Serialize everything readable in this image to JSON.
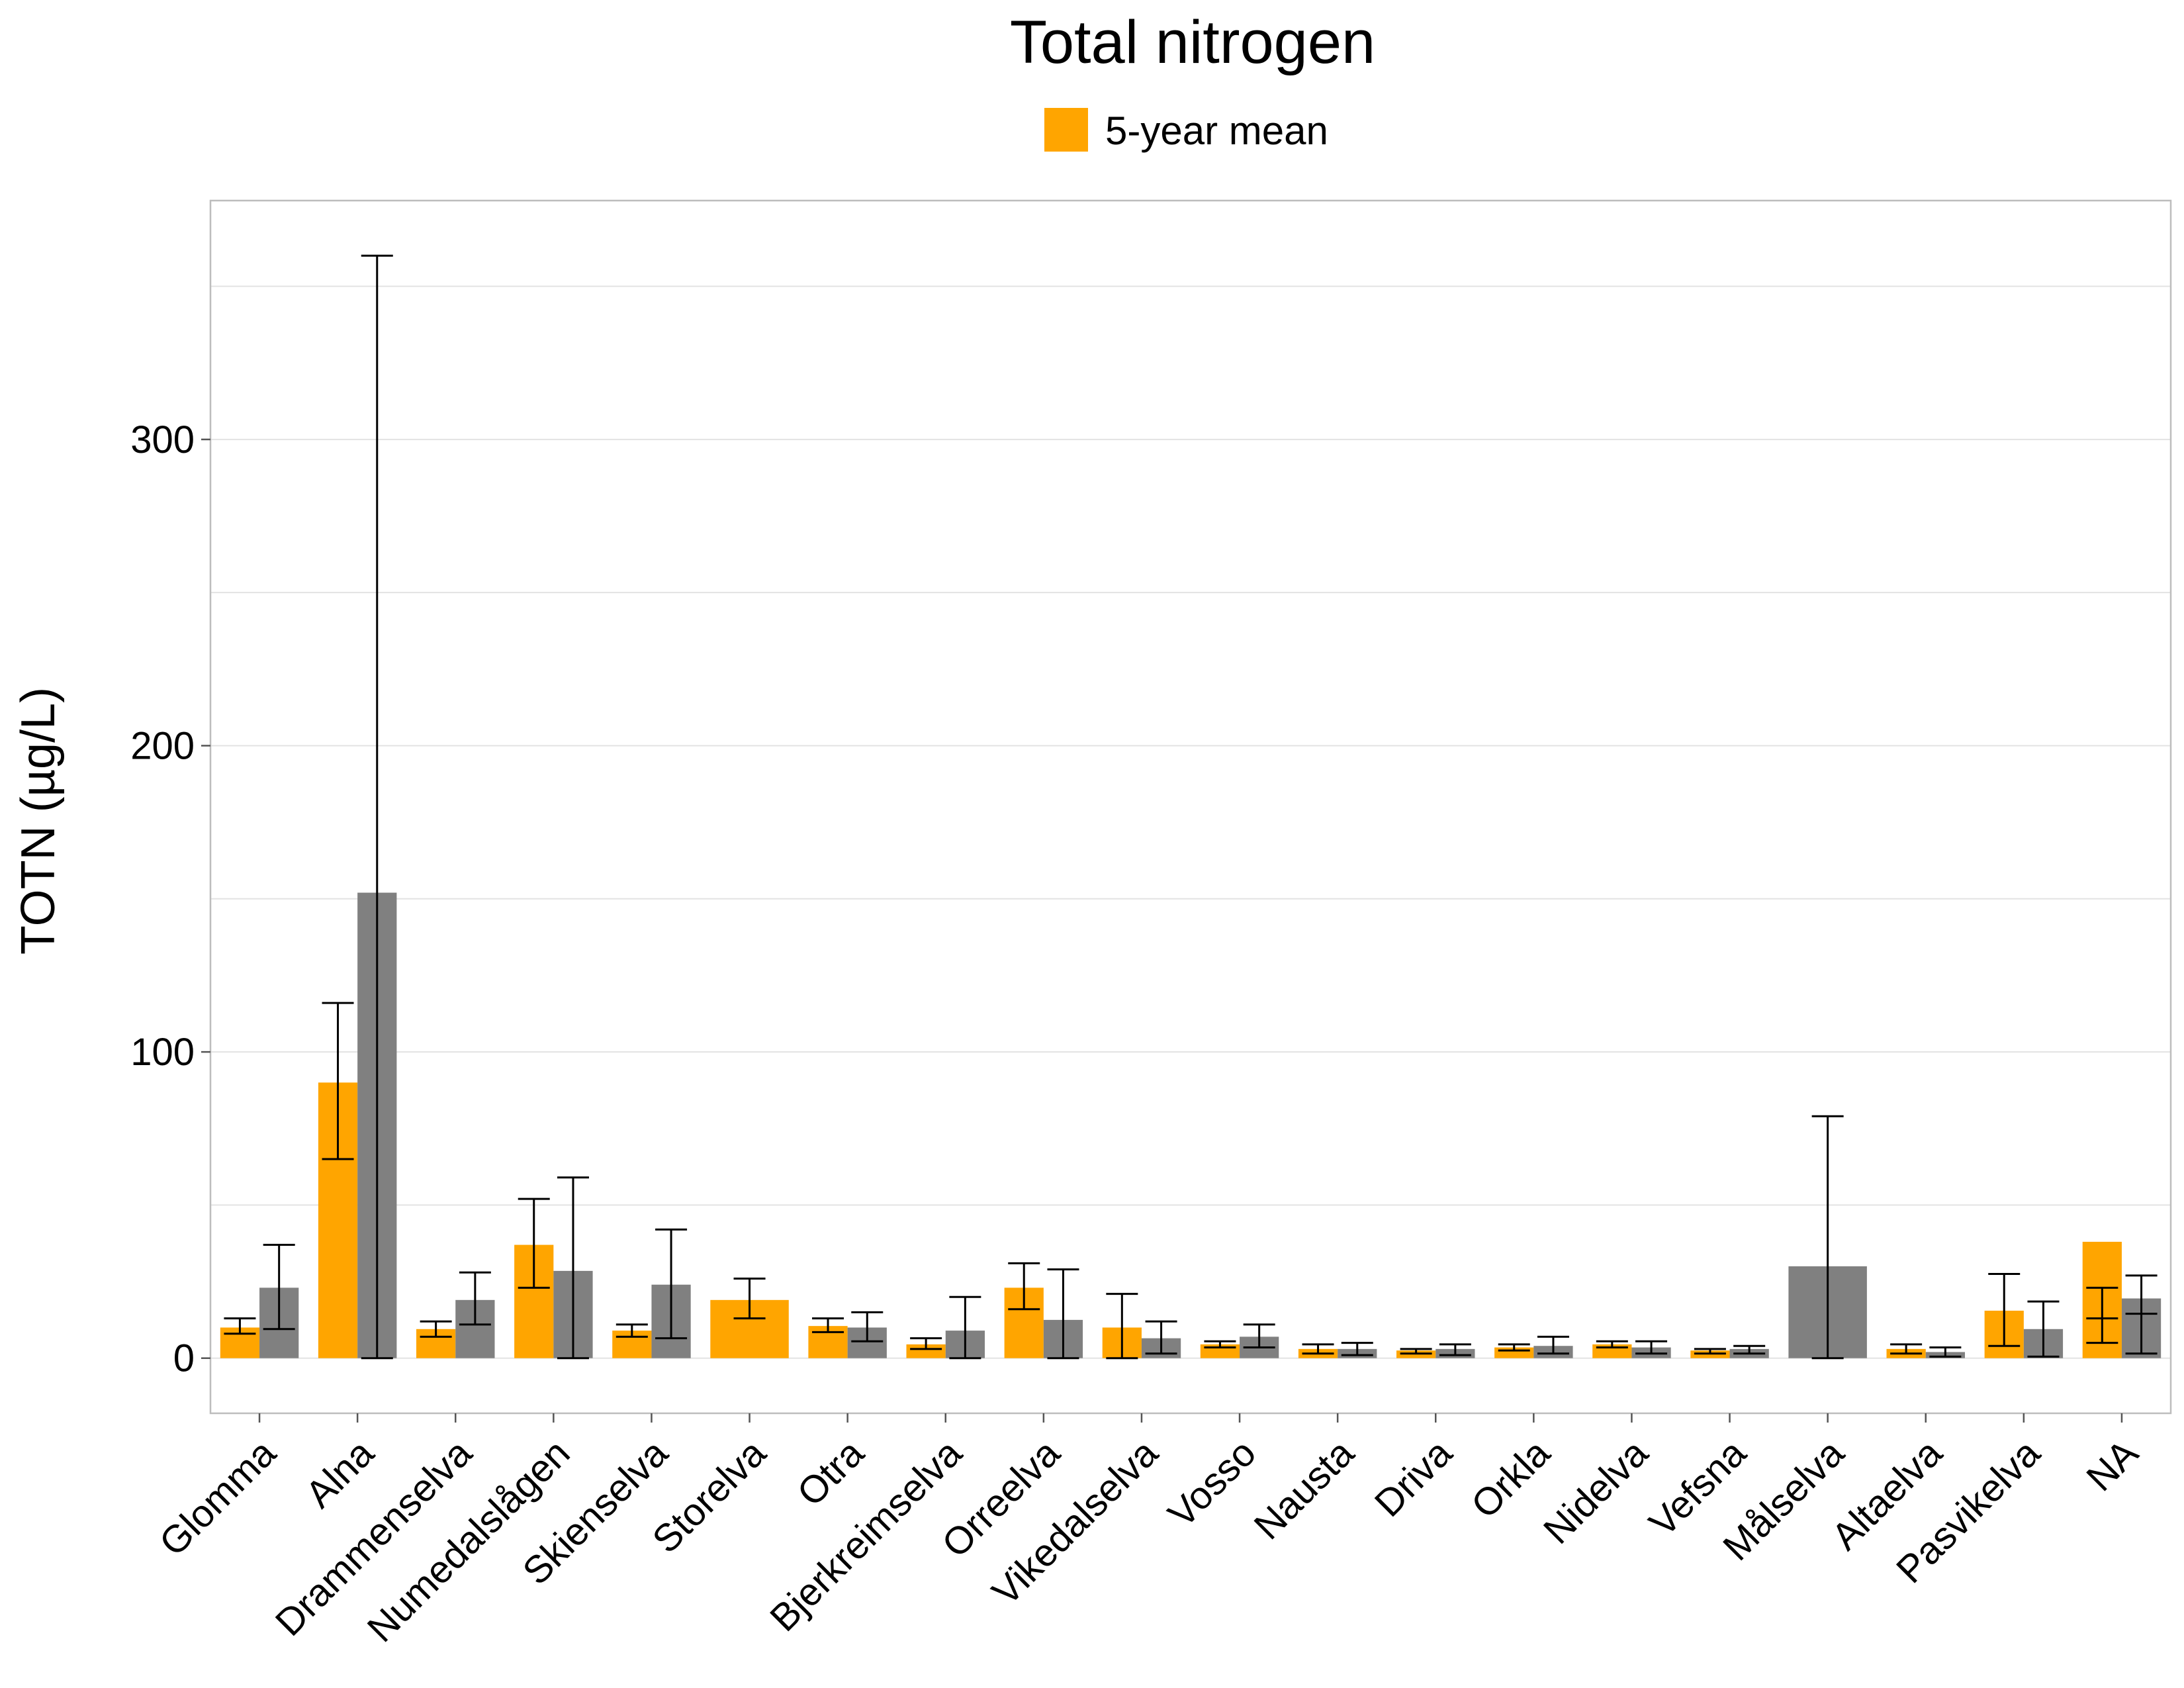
{
  "chart_data": {
    "type": "bar",
    "title": "Total nitrogen",
    "ylabel": "TOTN (µg/L)",
    "xlabel": "",
    "ylim": [
      -18,
      378
    ],
    "yticks": [
      0,
      100,
      200,
      300
    ],
    "grid": true,
    "legend_position": "top",
    "categories": [
      "Glomma",
      "Alna",
      "Drammenselva",
      "Numedalslågen",
      "Skienselva",
      "Storelva",
      "Otra",
      "Bjerkreimselva",
      "Orreelva",
      "Vikedalselva",
      "Vosso",
      "Nausta",
      "Driva",
      "Orkla",
      "Nidelva",
      "Vefsna",
      "Målselva",
      "Altaelva",
      "Pasvikelva",
      "NA"
    ],
    "series": [
      {
        "name": "5-year mean",
        "color": "#FFA500",
        "values": [
          10,
          90,
          9.5,
          37,
          9,
          19,
          10.5,
          4.5,
          23,
          10,
          4.5,
          3,
          2.5,
          3.5,
          4.5,
          2.5,
          null,
          3,
          15.5,
          38
        ],
        "err_low": [
          8,
          65,
          7,
          23,
          7,
          13,
          8.5,
          3,
          16,
          0,
          3.5,
          1.5,
          1.5,
          2.5,
          3.5,
          1.5,
          null,
          1.5,
          4,
          5
        ],
        "err_high": [
          13,
          116,
          12,
          52,
          11,
          26,
          13,
          6.5,
          31,
          21,
          5.5,
          4.5,
          3,
          4.5,
          5.5,
          3,
          null,
          4.5,
          27.5,
          23
        ]
      },
      {
        "name": "",
        "color": "#808080",
        "values": [
          23,
          152,
          19,
          28.5,
          24,
          null,
          10,
          9,
          12.5,
          6.5,
          7,
          3,
          3,
          4,
          3.5,
          3,
          30,
          2,
          9.5,
          19.5
        ],
        "err_low": [
          9.5,
          0,
          11,
          0,
          6.5,
          null,
          5.5,
          0,
          0,
          1.5,
          3.5,
          1,
          1,
          1.5,
          1.5,
          1.5,
          0,
          0.5,
          0.5,
          1.5
        ],
        "err_high": [
          37,
          360,
          28,
          59,
          42,
          null,
          15,
          20,
          29,
          12,
          11,
          5,
          4.5,
          7,
          5.5,
          4,
          79,
          3.5,
          18.5,
          27
        ]
      }
    ],
    "extra_markers": [
      {
        "category": "NA",
        "series": 0,
        "values": [
          13
        ]
      },
      {
        "category": "NA",
        "series": 1,
        "values": [
          14.5
        ]
      }
    ]
  }
}
